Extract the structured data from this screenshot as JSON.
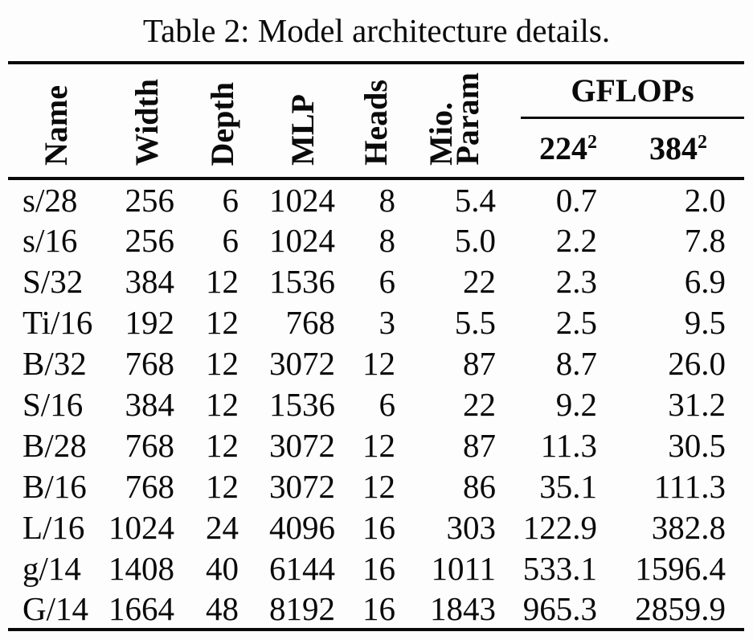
{
  "caption": "Table 2: Model architecture details.",
  "colors": {
    "text": "#0a0a0a",
    "background": "#fdfdfd",
    "rule": "#0a0a0a"
  },
  "table": {
    "column_keys": [
      "name",
      "width",
      "depth",
      "mlp",
      "heads",
      "mio-param",
      "gflops-224",
      "gflops-384"
    ],
    "headers": {
      "name": "Name",
      "width": "Width",
      "depth": "Depth",
      "mlp": "MLP",
      "heads": "Heads",
      "mio_param_line1": "Mio.",
      "mio_param_line2": "Param",
      "gflops_group": "GFLOPs",
      "gflops_sub_1_base": "224",
      "gflops_sub_1_sup": "2",
      "gflops_sub_2_base": "384",
      "gflops_sub_2_sup": "2"
    },
    "rows": [
      [
        "s/28",
        "256",
        "6",
        "1024",
        "8",
        "5.4",
        "0.7",
        "2.0"
      ],
      [
        "s/16",
        "256",
        "6",
        "1024",
        "8",
        "5.0",
        "2.2",
        "7.8"
      ],
      [
        "S/32",
        "384",
        "12",
        "1536",
        "6",
        "22",
        "2.3",
        "6.9"
      ],
      [
        "Ti/16",
        "192",
        "12",
        "768",
        "3",
        "5.5",
        "2.5",
        "9.5"
      ],
      [
        "B/32",
        "768",
        "12",
        "3072",
        "12",
        "87",
        "8.7",
        "26.0"
      ],
      [
        "S/16",
        "384",
        "12",
        "1536",
        "6",
        "22",
        "9.2",
        "31.2"
      ],
      [
        "B/28",
        "768",
        "12",
        "3072",
        "12",
        "87",
        "11.3",
        "30.5"
      ],
      [
        "B/16",
        "768",
        "12",
        "3072",
        "12",
        "86",
        "35.1",
        "111.3"
      ],
      [
        "L/16",
        "1024",
        "24",
        "4096",
        "16",
        "303",
        "122.9",
        "382.8"
      ],
      [
        "g/14",
        "1408",
        "40",
        "6144",
        "16",
        "1011",
        "533.1",
        "1596.4"
      ],
      [
        "G/14",
        "1664",
        "48",
        "8192",
        "16",
        "1843",
        "965.3",
        "2859.9"
      ]
    ]
  }
}
